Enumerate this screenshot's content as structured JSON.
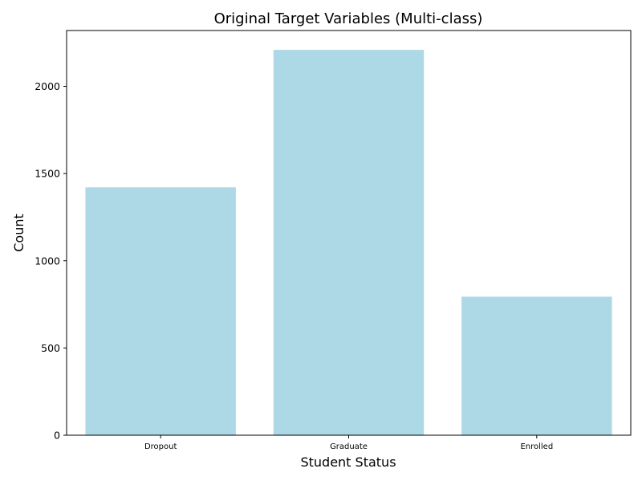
{
  "chart_data": {
    "type": "bar",
    "title": "Original Target Variables (Multi-class)",
    "xlabel": "Student Status",
    "ylabel": "Count",
    "categories": [
      "Dropout",
      "Graduate",
      "Enrolled"
    ],
    "values": [
      1421,
      2209,
      794
    ],
    "ylim": [
      0,
      2320
    ],
    "yticks": [
      0,
      500,
      1000,
      1500,
      2000
    ],
    "grid": false,
    "bar_color": "#add8e6"
  }
}
